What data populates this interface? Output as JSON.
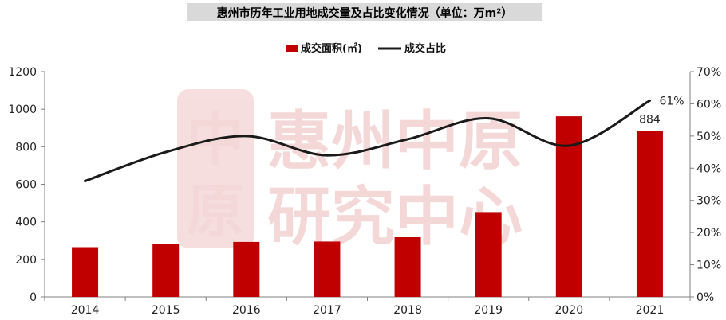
{
  "watermark": {
    "line1": "惠州中原",
    "line2": "研究中心",
    "logo_top": "中",
    "logo_bottom": "原"
  },
  "chart_data": {
    "type": "bar",
    "title": "惠州市历年工业用地成交量及占比变化情况（单位：万m²）",
    "categories": [
      "2014",
      "2015",
      "2016",
      "2017",
      "2018",
      "2019",
      "2020",
      "2021"
    ],
    "series": [
      {
        "name": "成交面积(㎡)",
        "type": "bar",
        "axis": "left",
        "color": "#c00000",
        "values": [
          265,
          280,
          293,
          295,
          318,
          452,
          962,
          884
        ]
      },
      {
        "name": "成交占比",
        "type": "line",
        "axis": "right",
        "color": "#1a1a1a",
        "values": [
          36,
          45,
          50,
          44,
          49,
          55.5,
          47,
          61
        ]
      }
    ],
    "y_left": {
      "min": 0,
      "max": 1200,
      "ticks": [
        "0",
        "200",
        "400",
        "600",
        "800",
        "1000",
        "1200"
      ]
    },
    "y_right": {
      "min": 0,
      "max": 70,
      "ticks": [
        "0%",
        "10%",
        "20%",
        "30%",
        "40%",
        "50%",
        "60%",
        "70%"
      ]
    },
    "annotations": [
      {
        "category": "2021",
        "series": "成交面积(㎡)",
        "text": "884"
      },
      {
        "category": "2021",
        "series": "成交占比",
        "text": "61%"
      }
    ],
    "legend_position": "top-center",
    "grid": false
  }
}
